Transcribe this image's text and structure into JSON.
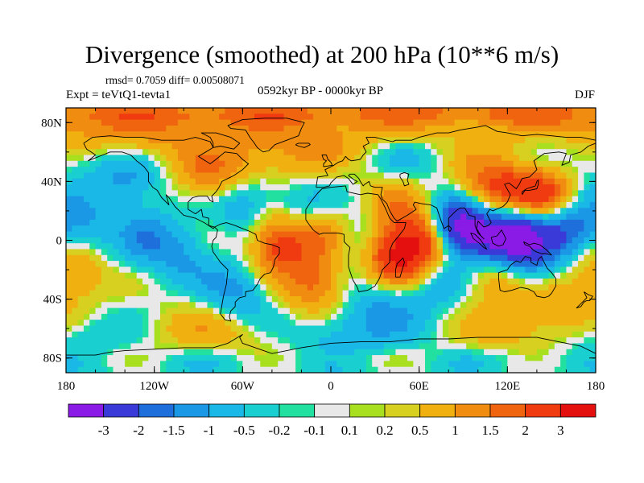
{
  "header": {
    "title": "Divergence (smoothed) at 200 hPa (10**6 m/s)",
    "stats": "rmsd= 0.7059 diff= 0.00508071",
    "experiment": "Expt = teVtQ1-tevta1",
    "period": "0592kyr BP - 0000kyr BP",
    "season": "DJF"
  },
  "chart_data": {
    "type": "heatmap",
    "title": "Divergence (smoothed) at 200 hPa (10**6 m/s)",
    "projection": "cylindrical equidistant",
    "xlim": [
      -180,
      180
    ],
    "ylim": [
      -90,
      90
    ],
    "x_ticks": [
      {
        "value": -180,
        "label": "180"
      },
      {
        "value": -120,
        "label": "120W"
      },
      {
        "value": -60,
        "label": "60W"
      },
      {
        "value": 0,
        "label": "0"
      },
      {
        "value": 60,
        "label": "60E"
      },
      {
        "value": 120,
        "label": "120E"
      },
      {
        "value": 180,
        "label": "180"
      }
    ],
    "y_ticks": [
      {
        "value": 80,
        "label": "80N"
      },
      {
        "value": 40,
        "label": "40N"
      },
      {
        "value": 0,
        "label": "0"
      },
      {
        "value": -40,
        "label": "40S"
      },
      {
        "value": -80,
        "label": "80S"
      }
    ],
    "levels": [
      "-3",
      "-2",
      "-1.5",
      "-1",
      "-0.5",
      "-0.2",
      "-0.1",
      "0.1",
      "0.2",
      "0.5",
      "1",
      "1.5",
      "2",
      "3"
    ],
    "bin_colors": [
      "#8a1ae6",
      "#3a3ad8",
      "#1e6fdc",
      "#1a98e6",
      "#1ab8e6",
      "#1acfd0",
      "#22e0a0",
      "#e8e8e8",
      "#a8e020",
      "#d8d020",
      "#f0b010",
      "#f08c10",
      "#f06410",
      "#f03a10",
      "#e41010"
    ],
    "anomalies": [
      {
        "lon": 88,
        "lat": 10,
        "value": -3.2
      },
      {
        "lon": 130,
        "lat": 2,
        "value": -3.1
      },
      {
        "lon": 108,
        "lat": 2,
        "value": -2.2
      },
      {
        "lon": 160,
        "lat": 8,
        "value": -2.0
      },
      {
        "lon": 60,
        "lat": -2,
        "value": 2.8
      },
      {
        "lon": 42,
        "lat": -12,
        "value": 2.4
      },
      {
        "lon": -35,
        "lat": -2,
        "value": 2.5
      },
      {
        "lon": -80,
        "lat": 45,
        "value": 1.6
      },
      {
        "lon": 110,
        "lat": 32,
        "value": 2.3
      },
      {
        "lon": 145,
        "lat": 30,
        "value": 2.6
      },
      {
        "lon": 45,
        "lat": 25,
        "value": 1.0
      },
      {
        "lon": -5,
        "lat": 5,
        "value": 1.4
      },
      {
        "lon": -10,
        "lat": -30,
        "value": 1.6
      },
      {
        "lon": 110,
        "lat": -25,
        "value": 1.2
      },
      {
        "lon": 150,
        "lat": -40,
        "value": 1.0
      },
      {
        "lon": -175,
        "lat": -22,
        "value": 1.3
      },
      {
        "lon": -168,
        "lat": 10,
        "value": -1.0
      },
      {
        "lon": -125,
        "lat": 2,
        "value": -1.2
      },
      {
        "lon": -100,
        "lat": -10,
        "value": -1.0
      },
      {
        "lon": -60,
        "lat": 25,
        "value": -1.1
      },
      {
        "lon": -20,
        "lat": 22,
        "value": -1.0
      },
      {
        "lon": 15,
        "lat": 0,
        "value": -0.8
      },
      {
        "lon": -65,
        "lat": -35,
        "value": -1.2
      },
      {
        "lon": 30,
        "lat": -40,
        "value": -0.9
      },
      {
        "lon": 70,
        "lat": -30,
        "value": -1.0
      },
      {
        "lon": 140,
        "lat": -25,
        "value": -0.8
      },
      {
        "lon": -140,
        "lat": 40,
        "value": -1.1
      },
      {
        "lon": 170,
        "lat": 50,
        "value": -0.7
      },
      {
        "lon": 60,
        "lat": 55,
        "value": -0.6
      },
      {
        "lon": -30,
        "lat": 55,
        "value": 0.9
      },
      {
        "lon": 0,
        "lat": 75,
        "value": 0.8
      },
      {
        "lon": -120,
        "lat": 75,
        "value": 0.8
      },
      {
        "lon": 100,
        "lat": 70,
        "value": 0.7
      },
      {
        "lon": -90,
        "lat": -60,
        "value": 0.9
      },
      {
        "lon": 20,
        "lat": -62,
        "value": -0.8
      },
      {
        "lon": 120,
        "lat": -60,
        "value": 0.7
      },
      {
        "lon": -160,
        "lat": -70,
        "value": -0.7
      },
      {
        "lon": -170,
        "lat": 70,
        "value": 0.7
      }
    ]
  }
}
